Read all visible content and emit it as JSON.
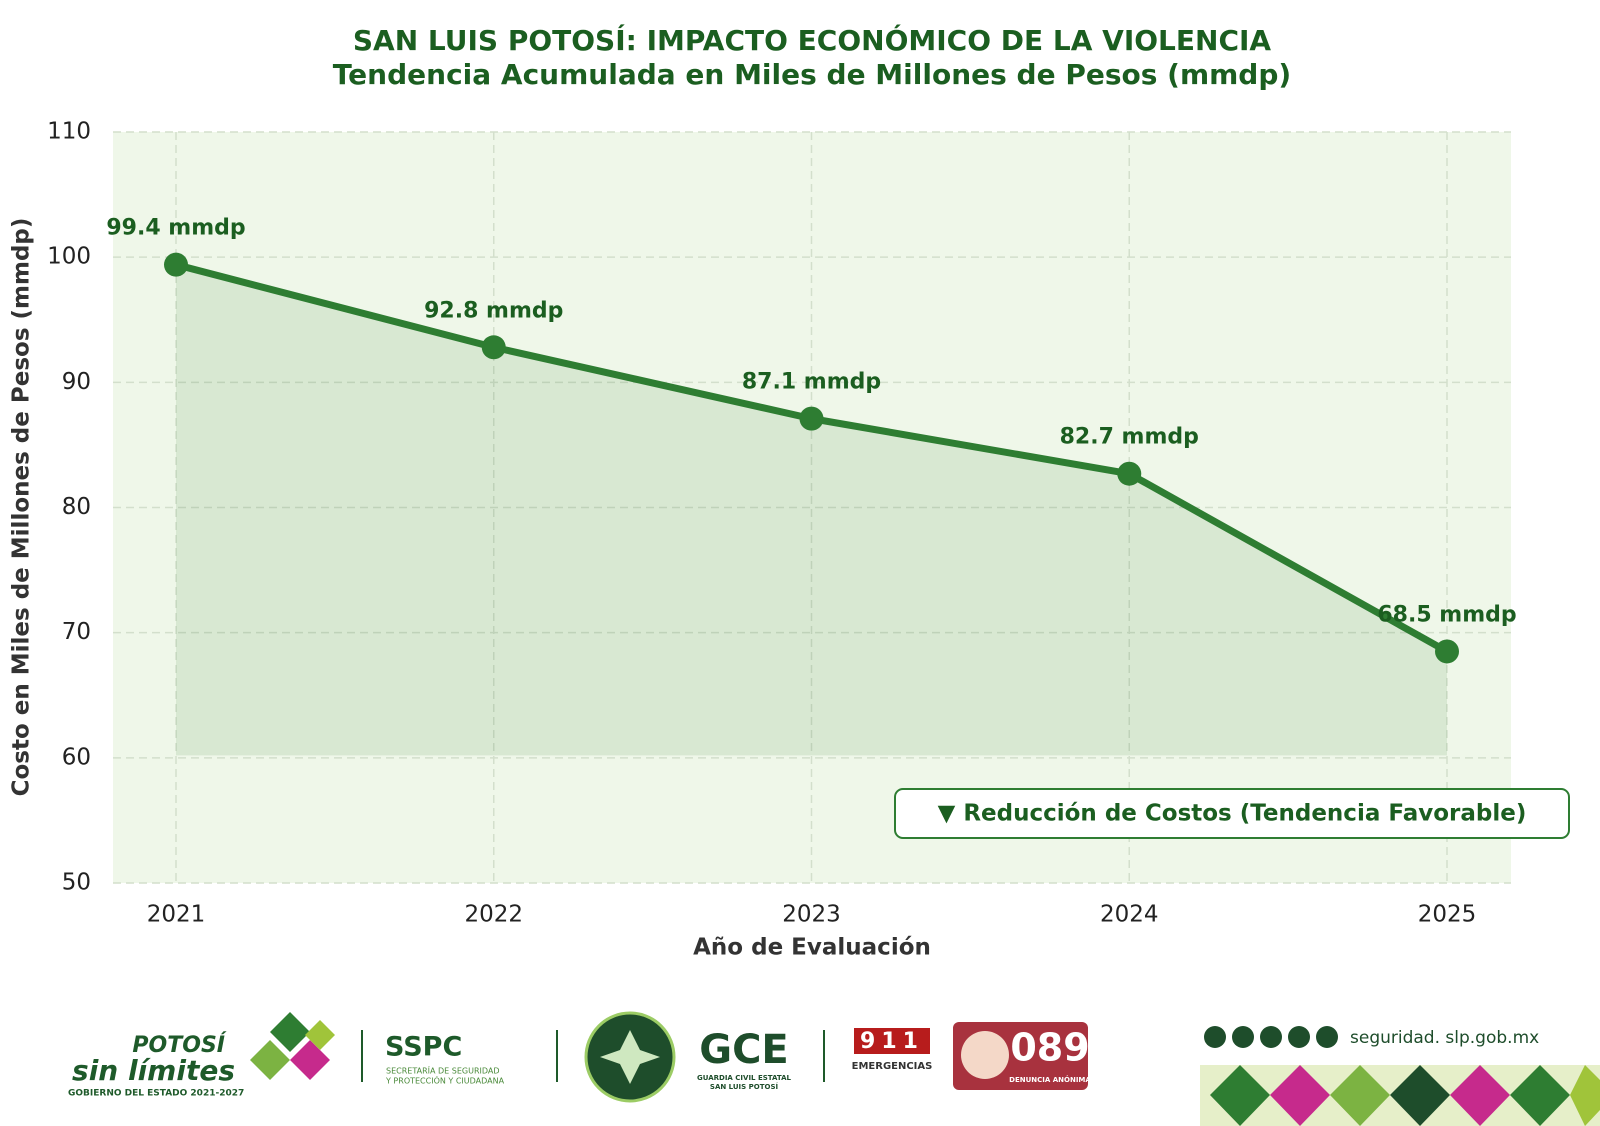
{
  "chart_data": {
    "type": "line",
    "title": "SAN LUIS POTOSÍ: IMPACTO ECONÓMICO DE LA VIOLENCIA",
    "subtitle": "Tendencia Acumulada en Miles de Millones de Pesos (mmdp)",
    "x_label": "Año de Evaluación",
    "y_label": "Costo en Miles de Millones de Pesos (mmdp)",
    "categories": [
      "2021",
      "2022",
      "2023",
      "2024",
      "2025"
    ],
    "values": [
      99.4,
      92.8,
      87.1,
      82.7,
      68.5
    ],
    "value_labels": [
      "99.4 mmdp",
      "92.8 mmdp",
      "87.1 mmdp",
      "82.7 mmdp",
      "68.5 mmdp"
    ],
    "color": "#2e7d32",
    "ylim": [
      50,
      110
    ],
    "yticks": [
      50,
      60,
      70,
      80,
      90,
      100,
      110
    ],
    "grid": true,
    "annotation": "▼ Reducción de Costos (Tendencia Favorable)"
  },
  "footer": {
    "potosi": "POTOSÍ",
    "sin_limites": "sin límites",
    "gobierno": "GOBIERNO DEL ESTADO 2021-2027",
    "sspc": "SSPC",
    "sspc_sub1": "SECRETARÍA DE SEGURIDAD",
    "sspc_sub2": "Y PROTECCIÓN Y CIUDADANA",
    "gce": "GCE",
    "gce_sub1": "GUARDIA CIVIL ESTATAL",
    "gce_sub2": "SAN LUIS POTOSÍ",
    "n911": "911",
    "emergencias": "EMERGENCIAS",
    "n089": "089",
    "denuncia": "DENUNCIA ANÓNIMA",
    "website": "seguridad. slp.gob.mx"
  }
}
